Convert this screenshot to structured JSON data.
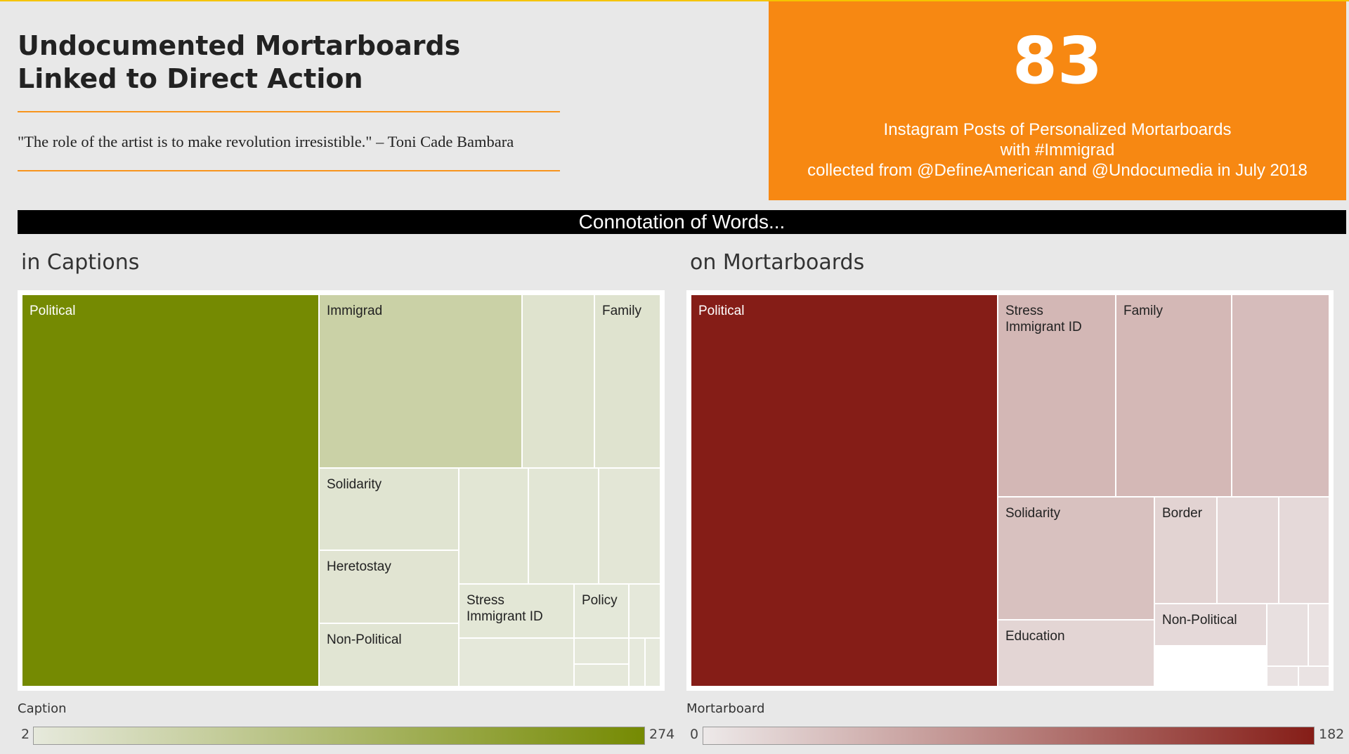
{
  "header": {
    "title_lines": [
      "Undocumented Mortarboards",
      "Linked to Direct Action"
    ],
    "quote": "\"The role of the artist is to make revolution irresistible.\" – Toni Cade Bambara"
  },
  "kpi": {
    "value": "83",
    "lines": [
      "Instagram Posts of Personalized Mortarboards",
      "with #Immigrad",
      "collected from @DefineAmerican and @Undocumedia in July 2018"
    ]
  },
  "banner": "Connotation of Words...",
  "colors": {
    "accent": "#f7941d",
    "kpi_bg": "#f78812",
    "caption_scale": [
      "#e6e9dc",
      "#758a02"
    ],
    "mortarboard_scale": [
      "#ede9e9",
      "#851d17"
    ]
  },
  "chart_data": [
    {
      "type": "treemap",
      "title": "in Captions",
      "color_field": "Caption",
      "color_range": [
        2,
        274
      ],
      "legend_min_label": "2",
      "legend_max_label": "274",
      "nodes": [
        {
          "label": "Political",
          "value": 274
        },
        {
          "label": "Immigrad",
          "value": 70
        },
        {
          "label": "",
          "value": 20
        },
        {
          "label": "Family",
          "value": 18
        },
        {
          "label": "Solidarity",
          "value": 16
        },
        {
          "label": "Heretostay",
          "value": 15
        },
        {
          "label": "Non-Political",
          "value": 13
        },
        {
          "label": "",
          "value": 12
        },
        {
          "label": "",
          "value": 11
        },
        {
          "label": "",
          "value": 10
        },
        {
          "label": "Stress Immigrant ID",
          "value": 9
        },
        {
          "label": "Policy",
          "value": 6
        },
        {
          "label": "",
          "value": 5
        },
        {
          "label": "",
          "value": 5
        },
        {
          "label": "",
          "value": 4
        },
        {
          "label": "",
          "value": 4
        },
        {
          "label": "",
          "value": 2
        },
        {
          "label": "",
          "value": 2
        }
      ]
    },
    {
      "type": "treemap",
      "title": "on Mortarboards",
      "color_field": "Mortarboard",
      "color_range": [
        0,
        182
      ],
      "legend_min_label": "0",
      "legend_max_label": "182",
      "nodes": [
        {
          "label": "Political",
          "value": 182
        },
        {
          "label": "Stress Immigrant ID",
          "value": 45
        },
        {
          "label": "Family",
          "value": 44
        },
        {
          "label": "",
          "value": 40
        },
        {
          "label": "Solidarity",
          "value": 36
        },
        {
          "label": "Border",
          "value": 20
        },
        {
          "label": "",
          "value": 16
        },
        {
          "label": "",
          "value": 14
        },
        {
          "label": "Education",
          "value": 18
        },
        {
          "label": "Non-Political",
          "value": 14
        },
        {
          "label": "",
          "value": 8
        },
        {
          "label": "",
          "value": 6
        },
        {
          "label": "",
          "value": 5
        },
        {
          "label": "",
          "value": 5
        }
      ]
    }
  ]
}
